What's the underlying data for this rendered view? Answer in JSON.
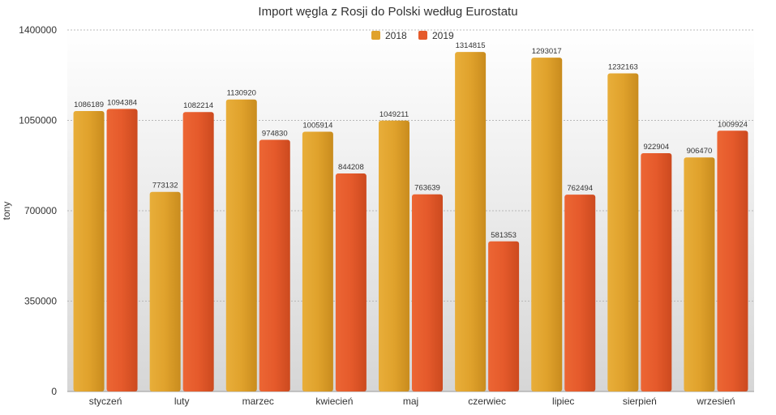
{
  "chart_data": {
    "type": "bar",
    "title": "Import węgla z Rosji do Polski według Eurostatu",
    "xlabel": "",
    "ylabel": "tony",
    "ylim": [
      0,
      1400000
    ],
    "yticks": [
      0,
      350000,
      700000,
      1050000,
      1400000
    ],
    "grid": true,
    "legend_position": "top-center",
    "categories": [
      "styczeń",
      "luty",
      "marzec",
      "kwiecień",
      "maj",
      "czerwiec",
      "lipiec",
      "sierpień",
      "wrzesień"
    ],
    "series": [
      {
        "name": "2018",
        "color": "#E0A22C",
        "values": [
          1086189,
          773132,
          1130920,
          1005914,
          1049211,
          1314815,
          1293017,
          1232163,
          906470
        ]
      },
      {
        "name": "2019",
        "color": "#E55A2B",
        "values": [
          1094384,
          1082214,
          974830,
          844208,
          763639,
          581353,
          762494,
          922904,
          1009924
        ]
      }
    ]
  }
}
